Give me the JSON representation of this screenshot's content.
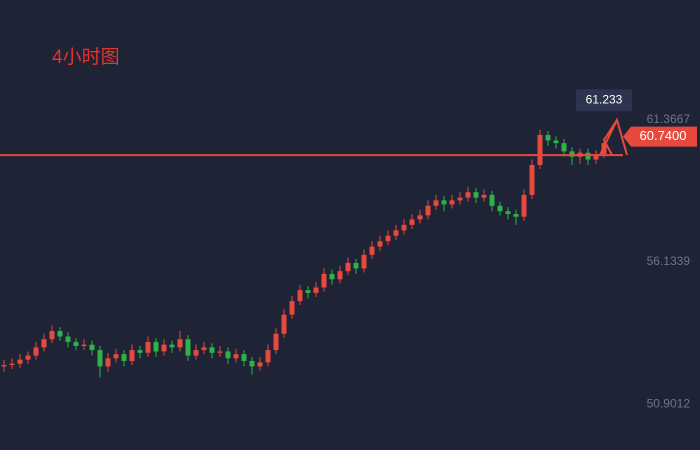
{
  "chart_data": {
    "type": "candlestick",
    "title": "4小时图",
    "ylim": [
      49.23,
      65.76
    ],
    "yticks": [
      50.9012,
      56.1339,
      61.3667
    ],
    "up_color": "#e8493d",
    "down_color": "#2db34a",
    "hline": 60.06,
    "price_label": {
      "value": 60.74,
      "label": "60.7400"
    },
    "tooltip": 61.233,
    "ohlc": [
      [
        52.3,
        52.55,
        52.1,
        52.35
      ],
      [
        52.35,
        52.6,
        52.2,
        52.4
      ],
      [
        52.4,
        52.75,
        52.25,
        52.55
      ],
      [
        52.55,
        52.85,
        52.4,
        52.7
      ],
      [
        52.7,
        53.2,
        52.55,
        53.0
      ],
      [
        53.0,
        53.5,
        52.85,
        53.3
      ],
      [
        53.3,
        53.8,
        53.15,
        53.6
      ],
      [
        53.6,
        53.75,
        53.25,
        53.4
      ],
      [
        53.4,
        53.55,
        53.0,
        53.2
      ],
      [
        53.2,
        53.35,
        52.9,
        53.05
      ],
      [
        53.05,
        53.3,
        52.9,
        53.1
      ],
      [
        53.1,
        53.25,
        52.7,
        52.9
      ],
      [
        52.9,
        53.05,
        51.9,
        52.3
      ],
      [
        52.3,
        52.8,
        52.1,
        52.6
      ],
      [
        52.6,
        52.95,
        52.45,
        52.75
      ],
      [
        52.75,
        52.9,
        52.3,
        52.5
      ],
      [
        52.5,
        53.1,
        52.35,
        52.9
      ],
      [
        52.9,
        53.05,
        52.6,
        52.8
      ],
      [
        52.8,
        53.4,
        52.65,
        53.2
      ],
      [
        53.2,
        53.35,
        52.65,
        52.85
      ],
      [
        52.85,
        53.3,
        52.7,
        53.1
      ],
      [
        53.1,
        53.25,
        52.8,
        53.0
      ],
      [
        53.0,
        53.6,
        52.85,
        53.3
      ],
      [
        53.3,
        53.45,
        52.5,
        52.7
      ],
      [
        52.7,
        53.1,
        52.55,
        52.9
      ],
      [
        52.9,
        53.2,
        52.75,
        53.0
      ],
      [
        53.0,
        53.15,
        52.6,
        52.8
      ],
      [
        52.8,
        53.05,
        52.65,
        52.85
      ],
      [
        52.85,
        53.0,
        52.4,
        52.6
      ],
      [
        52.6,
        52.95,
        52.45,
        52.75
      ],
      [
        52.75,
        52.9,
        52.3,
        52.5
      ],
      [
        52.5,
        52.65,
        52.0,
        52.3
      ],
      [
        52.3,
        52.65,
        52.15,
        52.45
      ],
      [
        52.45,
        53.1,
        52.3,
        52.9
      ],
      [
        52.9,
        53.7,
        52.75,
        53.5
      ],
      [
        53.5,
        54.4,
        53.35,
        54.2
      ],
      [
        54.2,
        54.9,
        54.05,
        54.7
      ],
      [
        54.7,
        55.3,
        54.55,
        55.1
      ],
      [
        55.1,
        55.25,
        54.8,
        55.0
      ],
      [
        55.0,
        55.4,
        54.85,
        55.2
      ],
      [
        55.2,
        55.9,
        55.05,
        55.7
      ],
      [
        55.7,
        55.85,
        55.3,
        55.5
      ],
      [
        55.5,
        56.0,
        55.35,
        55.8
      ],
      [
        55.8,
        56.3,
        55.65,
        56.1
      ],
      [
        56.1,
        56.25,
        55.7,
        55.9
      ],
      [
        55.9,
        56.6,
        55.75,
        56.4
      ],
      [
        56.4,
        56.9,
        56.25,
        56.7
      ],
      [
        56.7,
        57.1,
        56.55,
        56.9
      ],
      [
        56.9,
        57.3,
        56.75,
        57.1
      ],
      [
        57.1,
        57.5,
        56.95,
        57.3
      ],
      [
        57.3,
        57.7,
        57.15,
        57.5
      ],
      [
        57.5,
        57.9,
        57.35,
        57.7
      ],
      [
        57.7,
        58.05,
        57.55,
        57.85
      ],
      [
        57.85,
        58.4,
        57.7,
        58.2
      ],
      [
        58.2,
        58.6,
        58.05,
        58.4
      ],
      [
        58.4,
        58.55,
        58.0,
        58.25
      ],
      [
        58.25,
        58.6,
        58.1,
        58.4
      ],
      [
        58.4,
        58.7,
        58.25,
        58.5
      ],
      [
        58.5,
        58.9,
        58.35,
        58.7
      ],
      [
        58.7,
        58.85,
        58.3,
        58.5
      ],
      [
        58.5,
        58.8,
        58.35,
        58.6
      ],
      [
        58.6,
        58.75,
        58.0,
        58.2
      ],
      [
        58.2,
        58.35,
        57.85,
        58.0
      ],
      [
        58.0,
        58.15,
        57.7,
        57.9
      ],
      [
        57.9,
        58.05,
        57.5,
        57.8
      ],
      [
        57.8,
        58.8,
        57.65,
        58.6
      ],
      [
        58.6,
        59.9,
        58.45,
        59.7
      ],
      [
        59.7,
        61.0,
        59.55,
        60.8
      ],
      [
        60.8,
        60.95,
        60.4,
        60.6
      ],
      [
        60.6,
        60.75,
        60.3,
        60.5
      ],
      [
        60.5,
        60.65,
        60.0,
        60.2
      ],
      [
        60.2,
        60.35,
        59.7,
        60.0
      ],
      [
        60.0,
        60.3,
        59.75,
        60.15
      ],
      [
        60.15,
        60.3,
        59.7,
        59.9
      ],
      [
        59.9,
        60.25,
        59.75,
        60.1
      ],
      [
        60.1,
        60.7,
        59.95,
        60.5
      ]
    ]
  }
}
